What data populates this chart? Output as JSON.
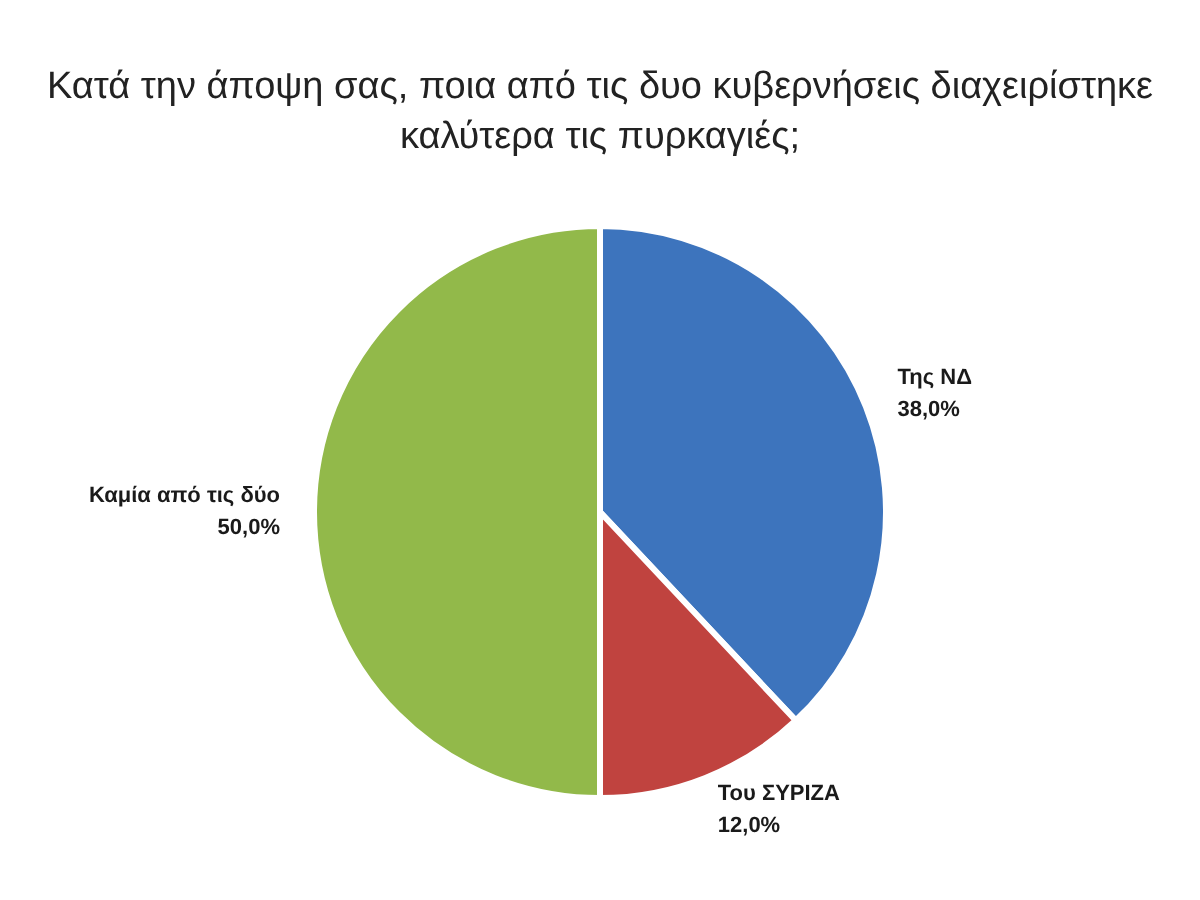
{
  "chart_data": {
    "type": "pie",
    "title": "Κατά την άποψη σας, ποια από τις δυο κυβερνήσεις διαχειρίστηκε καλύτερα τις πυρκαγιές;",
    "categories": [
      "Της ΝΔ",
      "Του ΣΥΡΙΖΑ",
      "Καμία από τις δύο"
    ],
    "values": [
      38,
      12,
      50
    ],
    "colors": [
      "#3d74bd",
      "#c0433f",
      "#92b94a"
    ],
    "value_labels": [
      "38,0%",
      "12,0%",
      "50,0%"
    ]
  }
}
